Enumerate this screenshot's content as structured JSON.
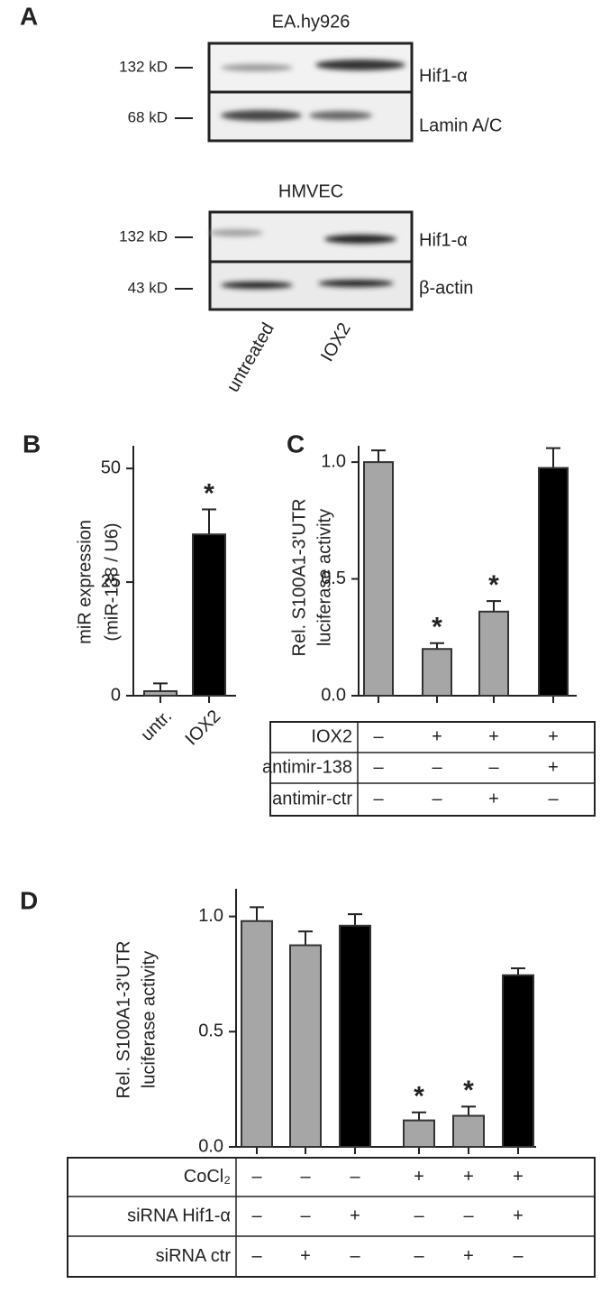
{
  "panel_a": {
    "panel": "A",
    "blots": [
      {
        "cell_line": "EA.hy926",
        "rows": [
          {
            "marker": "132 kD",
            "protein": "Hif1-α"
          },
          {
            "marker": "68 kD",
            "protein": "Lamin A/C"
          }
        ]
      },
      {
        "cell_line": "HMVEC",
        "rows": [
          {
            "marker": "132 kD",
            "protein": "Hif1-α"
          },
          {
            "marker": "43 kD",
            "protein": "β-actin"
          }
        ]
      }
    ],
    "lanes": [
      "untreated",
      "IOX2"
    ]
  },
  "chart_data": [
    {
      "type": "bar",
      "panel": "B",
      "ylabel": [
        "miR expression",
        "(miR-138 / U6)"
      ],
      "categories": [
        "untr.",
        "IOX2"
      ],
      "values": [
        1,
        35.5
      ],
      "errors": [
        1.7,
        5.5
      ],
      "colors": [
        "#a6a6a6",
        "#000000"
      ],
      "significance": [
        null,
        "*"
      ],
      "ylim": [
        0,
        55
      ],
      "yticks": [
        0,
        25,
        50
      ]
    },
    {
      "type": "bar",
      "panel": "C",
      "ylabel": [
        "Rel. S100A1-3'UTR",
        "luciferase activity"
      ],
      "values": [
        1.0,
        0.2,
        0.36,
        0.975
      ],
      "errors": [
        0.05,
        0.025,
        0.045,
        0.085
      ],
      "colors": [
        "#a6a6a6",
        "#a6a6a6",
        "#a6a6a6",
        "#000000"
      ],
      "significance": [
        null,
        "*",
        "*",
        null
      ],
      "ylim": [
        0,
        1.07
      ],
      "yticks": [
        {
          "value": 0,
          "label": "0.0"
        },
        {
          "value": 0.5,
          "label": "0.5"
        },
        {
          "value": 1,
          "label": "1.0"
        }
      ],
      "table": [
        {
          "label": "IOX2",
          "signs": [
            "–",
            "+",
            "+",
            "+"
          ]
        },
        {
          "label": "antimir-138",
          "signs": [
            "–",
            "–",
            "–",
            "+"
          ]
        },
        {
          "label": "antimir-ctr",
          "signs": [
            "–",
            "–",
            "+",
            "–"
          ]
        }
      ]
    },
    {
      "type": "bar",
      "panel": "D",
      "ylabel": [
        "Rel. S100A1-3'UTR",
        "luciferase activity"
      ],
      "values": [
        0.98,
        0.875,
        0.96,
        0.115,
        0.135,
        0.745
      ],
      "errors": [
        0.06,
        0.06,
        0.05,
        0.035,
        0.04,
        0.03
      ],
      "colors": [
        "#a6a6a6",
        "#a6a6a6",
        "#000000",
        "#a6a6a6",
        "#a6a6a6",
        "#000000"
      ],
      "significance": [
        null,
        null,
        null,
        "*",
        "*",
        null
      ],
      "ylim": [
        0,
        1.12
      ],
      "yticks": [
        {
          "value": 0,
          "label": "0.0"
        },
        {
          "value": 0.5,
          "label": "0.5"
        },
        {
          "value": 1,
          "label": "1.0"
        }
      ],
      "table": [
        {
          "label": "CoCl₂",
          "signs": [
            "–",
            "–",
            "–",
            "+",
            "+",
            "+"
          ]
        },
        {
          "label": "siRNA Hif1-α",
          "signs": [
            "–",
            "–",
            "+",
            "–",
            "–",
            "+"
          ]
        },
        {
          "label": "siRNA ctr",
          "signs": [
            "–",
            "+",
            "–",
            "–",
            "+",
            "–"
          ]
        }
      ]
    }
  ]
}
